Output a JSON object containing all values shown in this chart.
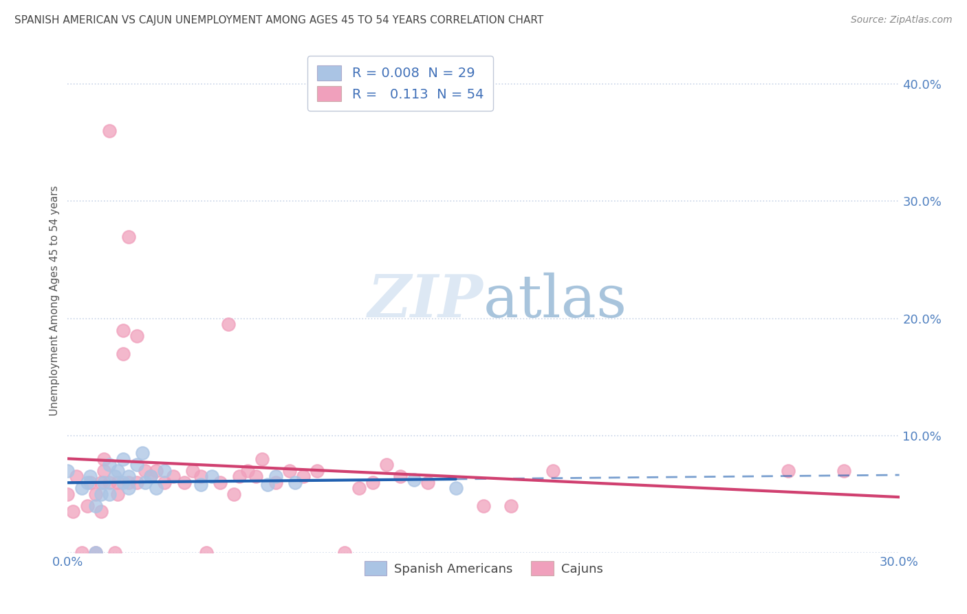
{
  "title": "SPANISH AMERICAN VS CAJUN UNEMPLOYMENT AMONG AGES 45 TO 54 YEARS CORRELATION CHART",
  "source": "Source: ZipAtlas.com",
  "ylabel": "Unemployment Among Ages 45 to 54 years",
  "xlim": [
    0.0,
    0.3
  ],
  "ylim": [
    0.0,
    0.43
  ],
  "ytick_positions": [
    0.0,
    0.1,
    0.2,
    0.3,
    0.4
  ],
  "background_color": "#ffffff",
  "grid_color": "#c8d4e8",
  "title_color": "#444444",
  "title_fontsize": 11,
  "spanish_R": 0.008,
  "spanish_N": 29,
  "cajun_R": 0.113,
  "cajun_N": 54,
  "spanish_color": "#aac4e4",
  "cajun_color": "#f0a0bc",
  "spanish_line_color": "#2060b0",
  "cajun_line_color": "#d04070",
  "spanish_x": [
    0.0,
    0.005,
    0.007,
    0.008,
    0.01,
    0.01,
    0.012,
    0.013,
    0.015,
    0.015,
    0.017,
    0.018,
    0.02,
    0.02,
    0.022,
    0.022,
    0.025,
    0.027,
    0.028,
    0.03,
    0.032,
    0.035,
    0.048,
    0.052,
    0.072,
    0.075,
    0.082,
    0.125,
    0.14
  ],
  "spanish_y": [
    0.07,
    0.055,
    0.06,
    0.065,
    0.0,
    0.04,
    0.05,
    0.06,
    0.05,
    0.075,
    0.065,
    0.07,
    0.06,
    0.08,
    0.055,
    0.065,
    0.075,
    0.085,
    0.06,
    0.065,
    0.055,
    0.07,
    0.058,
    0.065,
    0.058,
    0.065,
    0.06,
    0.062,
    0.055
  ],
  "cajun_x": [
    0.0,
    0.002,
    0.003,
    0.005,
    0.007,
    0.008,
    0.01,
    0.01,
    0.012,
    0.012,
    0.013,
    0.013,
    0.015,
    0.015,
    0.017,
    0.018,
    0.018,
    0.02,
    0.02,
    0.022,
    0.022,
    0.025,
    0.025,
    0.028,
    0.03,
    0.032,
    0.035,
    0.038,
    0.042,
    0.045,
    0.048,
    0.05,
    0.055,
    0.058,
    0.06,
    0.062,
    0.065,
    0.068,
    0.07,
    0.075,
    0.08,
    0.085,
    0.09,
    0.1,
    0.105,
    0.11,
    0.115,
    0.12,
    0.13,
    0.15,
    0.16,
    0.175,
    0.26,
    0.28
  ],
  "cajun_y": [
    0.05,
    0.035,
    0.065,
    0.0,
    0.04,
    0.06,
    0.0,
    0.05,
    0.035,
    0.06,
    0.07,
    0.08,
    0.06,
    0.36,
    0.0,
    0.05,
    0.06,
    0.17,
    0.19,
    0.27,
    0.06,
    0.185,
    0.06,
    0.07,
    0.065,
    0.07,
    0.06,
    0.065,
    0.06,
    0.07,
    0.065,
    0.0,
    0.06,
    0.195,
    0.05,
    0.065,
    0.07,
    0.065,
    0.08,
    0.06,
    0.07,
    0.065,
    0.07,
    0.0,
    0.055,
    0.06,
    0.075,
    0.065,
    0.06,
    0.04,
    0.04,
    0.07,
    0.07,
    0.07
  ]
}
